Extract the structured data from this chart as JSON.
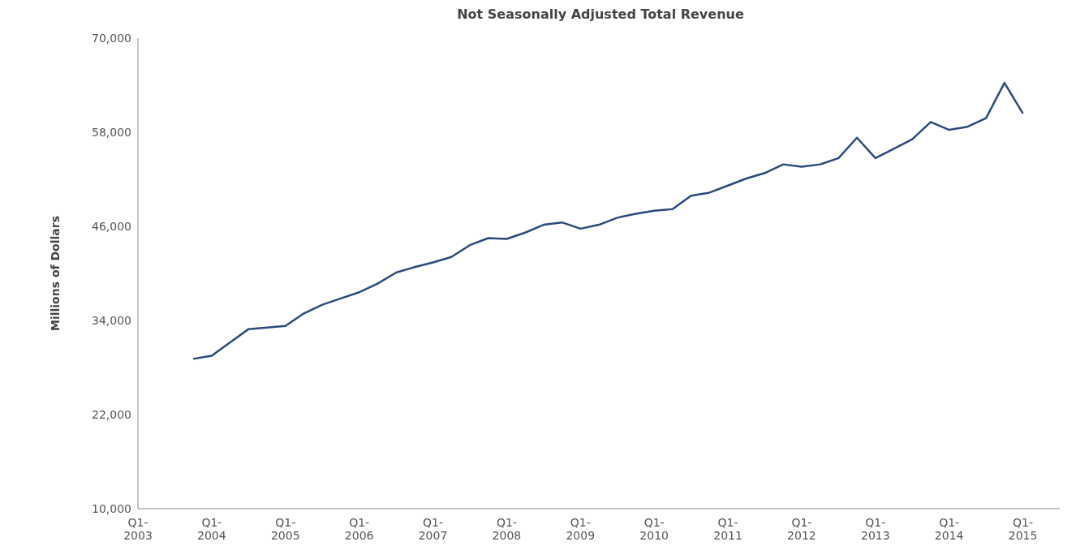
{
  "chart_data": {
    "type": "line",
    "title": "Not Seasonally Adjusted Total Revenue",
    "ylabel": "Millions of Dollars",
    "categories": [
      "Q1-\n2003",
      null,
      null,
      null,
      "Q1-\n2004",
      null,
      null,
      null,
      "Q1-\n2005",
      null,
      null,
      null,
      "Q1-\n2006",
      null,
      null,
      null,
      "Q1-\n2007",
      null,
      null,
      null,
      "Q1-\n2008",
      null,
      null,
      null,
      "Q1-\n2009",
      null,
      null,
      null,
      "Q1-\n2010",
      null,
      null,
      null,
      "Q1-\n2011",
      null,
      null,
      null,
      "Q1-\n2012",
      null,
      null,
      null,
      "Q1-\n2013",
      null,
      null,
      null,
      "Q1-\n2014",
      null,
      null,
      null,
      "Q1-\n2015",
      null,
      null
    ],
    "series": [
      {
        "color": "#2a4b7c",
        "values": [
          null,
          null,
          null,
          29100,
          29500,
          31200,
          32900,
          33100,
          33300,
          34900,
          36000,
          36800,
          37600,
          38700,
          40100,
          40800,
          41400,
          42100,
          43600,
          44500,
          44400,
          45200,
          46200,
          46500,
          45700,
          46200,
          47100,
          47600,
          48000,
          48200,
          49900,
          50300,
          51200,
          52100,
          52800,
          53900,
          53600,
          53900,
          54700,
          57300,
          54700,
          55900,
          57100,
          59300,
          58300,
          58700,
          59800,
          64300,
          60400,
          null,
          null
        ]
      }
    ],
    "ylim": [
      10000,
      70000
    ],
    "yticks": [
      {
        "value": 10000,
        "label": "10,000"
      },
      {
        "value": 22000,
        "label": "22,000"
      },
      {
        "value": 34000,
        "label": "34,000"
      },
      {
        "value": 46000,
        "label": "46,000"
      },
      {
        "value": 58000,
        "label": "58,000"
      },
      {
        "value": 70000,
        "label": "70,000"
      }
    ],
    "grid": false,
    "marker": "none",
    "line_style": "solid"
  }
}
